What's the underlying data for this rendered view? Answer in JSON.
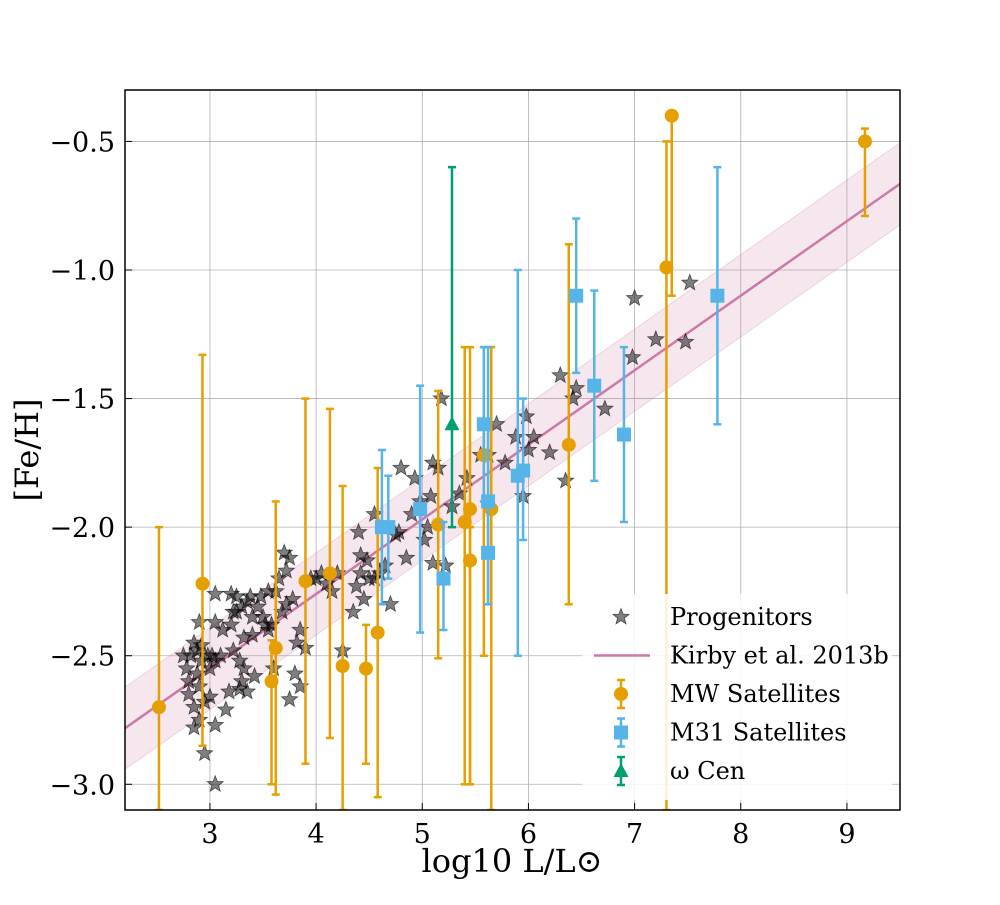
{
  "chart_data": {
    "type": "scatter",
    "xlabel": "log10 L/L⊙",
    "ylabel": "[Fe/H]",
    "xlim": [
      2.2,
      9.5
    ],
    "ylim": [
      -3.1,
      -0.3
    ],
    "xticks": [
      3,
      4,
      5,
      6,
      7,
      8,
      9
    ],
    "yticks": [
      -3.0,
      -2.5,
      -2.0,
      -1.5,
      -1.0,
      -0.5
    ],
    "grid": true,
    "legend_position": "bottom-right",
    "fit": {
      "name": "Kirby et al. 2013b",
      "color": "#cc79a7",
      "slope": 0.29,
      "intercept": -3.42,
      "band_halfwidth": 0.16
    },
    "series": [
      {
        "name": "Progenitors",
        "marker": "star",
        "color": "#555555",
        "points": [
          [
            2.75,
            -2.5
          ],
          [
            2.78,
            -2.55
          ],
          [
            2.8,
            -2.6
          ],
          [
            2.8,
            -2.65
          ],
          [
            2.82,
            -2.5
          ],
          [
            2.85,
            -2.45
          ],
          [
            2.85,
            -2.7
          ],
          [
            2.85,
            -2.78
          ],
          [
            2.88,
            -2.48
          ],
          [
            2.88,
            -2.57
          ],
          [
            2.9,
            -2.37
          ],
          [
            2.9,
            -2.62
          ],
          [
            2.9,
            -2.75
          ],
          [
            2.92,
            -2.46
          ],
          [
            2.92,
            -2.52
          ],
          [
            2.95,
            -2.88
          ],
          [
            2.95,
            -2.68
          ],
          [
            2.98,
            -2.5
          ],
          [
            3.0,
            -2.66
          ],
          [
            3.0,
            -2.55
          ],
          [
            3.02,
            -2.5
          ],
          [
            3.05,
            -2.26
          ],
          [
            3.05,
            -2.37
          ],
          [
            3.05,
            -2.52
          ],
          [
            3.05,
            -2.77
          ],
          [
            3.05,
            -3.0
          ],
          [
            3.1,
            -2.5
          ],
          [
            3.12,
            -2.4
          ],
          [
            3.15,
            -2.71
          ],
          [
            3.18,
            -2.64
          ],
          [
            3.2,
            -2.26
          ],
          [
            3.2,
            -2.38
          ],
          [
            3.22,
            -2.48
          ],
          [
            3.22,
            -2.33
          ],
          [
            3.25,
            -2.27
          ],
          [
            3.25,
            -2.33
          ],
          [
            3.28,
            -2.52
          ],
          [
            3.28,
            -2.63
          ],
          [
            3.3,
            -2.6
          ],
          [
            3.3,
            -2.31
          ],
          [
            3.32,
            -2.43
          ],
          [
            3.32,
            -2.55
          ],
          [
            3.35,
            -2.64
          ],
          [
            3.35,
            -2.29
          ],
          [
            3.38,
            -2.27
          ],
          [
            3.4,
            -2.35
          ],
          [
            3.4,
            -2.42
          ],
          [
            3.42,
            -2.58
          ],
          [
            3.45,
            -2.31
          ],
          [
            3.48,
            -2.27
          ],
          [
            3.5,
            -2.35
          ],
          [
            3.52,
            -2.38
          ],
          [
            3.55,
            -2.25
          ],
          [
            3.55,
            -2.4
          ],
          [
            3.58,
            -2.38
          ],
          [
            3.6,
            -2.55
          ],
          [
            3.62,
            -2.25
          ],
          [
            3.65,
            -2.2
          ],
          [
            3.68,
            -2.33
          ],
          [
            3.7,
            -2.1
          ],
          [
            3.72,
            -2.17
          ],
          [
            3.72,
            -2.3
          ],
          [
            3.75,
            -2.12
          ],
          [
            3.75,
            -2.67
          ],
          [
            3.78,
            -2.28
          ],
          [
            3.8,
            -2.57
          ],
          [
            3.82,
            -2.45
          ],
          [
            3.85,
            -2.4
          ],
          [
            3.85,
            -2.62
          ],
          [
            3.9,
            -2.47
          ],
          [
            3.95,
            -2.2
          ],
          [
            4.0,
            -2.2
          ],
          [
            4.05,
            -2.18
          ],
          [
            4.1,
            -2.22
          ],
          [
            4.15,
            -2.25
          ],
          [
            4.2,
            -2.18
          ],
          [
            4.25,
            -2.48
          ],
          [
            4.35,
            -2.33
          ],
          [
            4.38,
            -2.23
          ],
          [
            4.4,
            -2.02
          ],
          [
            4.42,
            -2.18
          ],
          [
            4.42,
            -2.11
          ],
          [
            4.45,
            -2.28
          ],
          [
            4.48,
            -2.13
          ],
          [
            4.5,
            -2.2
          ],
          [
            4.55,
            -2.2
          ],
          [
            4.55,
            -1.95
          ],
          [
            4.6,
            -2.18
          ],
          [
            4.65,
            -2.15
          ],
          [
            4.7,
            -2.3
          ],
          [
            4.75,
            -2.03
          ],
          [
            4.78,
            -2.02
          ],
          [
            4.8,
            -1.77
          ],
          [
            4.85,
            -2.12
          ],
          [
            4.9,
            -1.95
          ],
          [
            4.93,
            -1.81
          ],
          [
            4.98,
            -1.9
          ],
          [
            5.02,
            -2.05
          ],
          [
            5.05,
            -2.0
          ],
          [
            5.08,
            -1.88
          ],
          [
            5.1,
            -2.14
          ],
          [
            5.1,
            -1.75
          ],
          [
            5.15,
            -1.77
          ],
          [
            5.18,
            -1.5
          ],
          [
            5.22,
            -2.15
          ],
          [
            5.28,
            -1.92
          ],
          [
            5.35,
            -1.87
          ],
          [
            5.42,
            -1.81
          ],
          [
            5.55,
            -1.72
          ],
          [
            5.62,
            -1.72
          ],
          [
            5.7,
            -1.6
          ],
          [
            5.78,
            -1.75
          ],
          [
            5.88,
            -1.65
          ],
          [
            5.95,
            -1.88
          ],
          [
            5.98,
            -1.57
          ],
          [
            6.0,
            -1.7
          ],
          [
            6.05,
            -1.65
          ],
          [
            6.2,
            -1.71
          ],
          [
            6.3,
            -1.41
          ],
          [
            6.35,
            -1.82
          ],
          [
            6.42,
            -1.5
          ],
          [
            6.45,
            -1.46
          ],
          [
            6.72,
            -1.54
          ],
          [
            6.98,
            -1.34
          ],
          [
            7.0,
            -1.11
          ],
          [
            7.2,
            -1.27
          ],
          [
            7.48,
            -1.28
          ],
          [
            7.52,
            -1.05
          ]
        ]
      },
      {
        "name": "MW Satellites",
        "marker": "circle",
        "color": "#e69f00",
        "points": [
          [
            2.52,
            -2.7,
            -3.1,
            -2.0
          ],
          [
            2.93,
            -2.22,
            -2.85,
            -1.33
          ],
          [
            3.58,
            -2.6,
            -3.0,
            -2.44
          ],
          [
            3.62,
            -2.47,
            -3.04,
            -1.9
          ],
          [
            3.9,
            -2.21,
            -2.92,
            -1.5
          ],
          [
            4.13,
            -2.18,
            -2.82,
            -1.54
          ],
          [
            4.25,
            -2.54,
            -3.1,
            -1.84
          ],
          [
            4.47,
            -2.55,
            -2.92,
            -2.38
          ],
          [
            4.58,
            -2.41,
            -3.05,
            -1.77
          ],
          [
            5.15,
            -1.99,
            -2.51,
            -1.47
          ],
          [
            5.4,
            -1.98,
            -3.0,
            -1.3
          ],
          [
            5.45,
            -1.93,
            -3.0,
            -1.3
          ],
          [
            5.45,
            -2.13,
            -3.0,
            -2.0
          ],
          [
            5.65,
            -1.93,
            -3.1,
            -1.3
          ],
          [
            5.58,
            -1.72,
            -2.5,
            -1.3
          ],
          [
            6.38,
            -1.68,
            -2.3,
            -0.9
          ],
          [
            7.3,
            -0.99,
            -3.1,
            -0.5
          ],
          [
            7.35,
            -0.4,
            -1.1,
            -0.4
          ],
          [
            9.17,
            -0.5,
            -0.79,
            -0.45
          ]
        ]
      },
      {
        "name": "M31 Satellites",
        "marker": "square",
        "color": "#56b4e9",
        "points": [
          [
            4.62,
            -2.0,
            -2.3,
            -1.7
          ],
          [
            4.68,
            -2.0,
            -2.2,
            -1.8
          ],
          [
            4.98,
            -1.93,
            -2.41,
            -1.45
          ],
          [
            5.2,
            -2.2,
            -2.4,
            -1.98
          ],
          [
            5.58,
            -1.6,
            -1.9,
            -1.3
          ],
          [
            5.62,
            -1.9,
            -2.3,
            -1.3
          ],
          [
            5.62,
            -2.1,
            -2.3,
            -1.9
          ],
          [
            5.9,
            -1.8,
            -2.5,
            -1.0
          ],
          [
            5.95,
            -1.78,
            -2.05,
            -1.5
          ],
          [
            6.45,
            -1.1,
            -1.4,
            -0.8
          ],
          [
            6.62,
            -1.45,
            -1.82,
            -1.08
          ],
          [
            6.9,
            -1.64,
            -1.98,
            -1.3
          ],
          [
            7.78,
            -1.1,
            -1.6,
            -0.6
          ]
        ]
      },
      {
        "name": "ω Cen",
        "marker": "triangle",
        "color": "#009e73",
        "points": [
          [
            5.28,
            -1.6,
            -2.0,
            -0.6
          ]
        ]
      }
    ]
  }
}
